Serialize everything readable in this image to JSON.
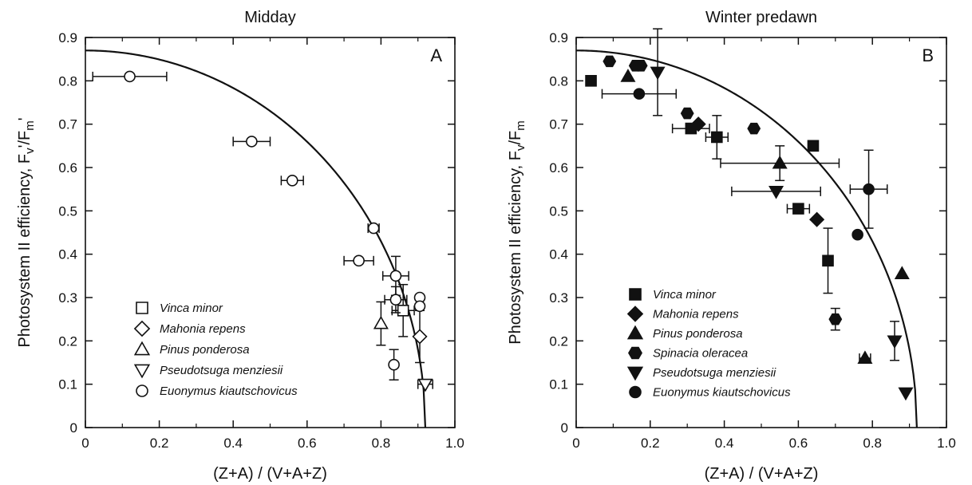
{
  "chart_data": [
    {
      "type": "scatter",
      "title": "Midday",
      "panel_label": "A",
      "xlabel": "(Z+A) / (V+A+Z)",
      "ylabel": "Photosystem II efficiency, F",
      "ylabel_sub1": "v",
      "ylabel_mid": "'/F",
      "ylabel_sub2": "m",
      "ylabel_end": "'",
      "xlim": [
        0,
        1.0
      ],
      "ylim": [
        0,
        0.9
      ],
      "xticks": [
        "0",
        "0.2",
        "0.4",
        "0.6",
        "0.8",
        "1.0"
      ],
      "yticks": [
        "0",
        "0.1",
        "0.2",
        "0.3",
        "0.4",
        "0.5",
        "0.6",
        "0.7",
        "0.8",
        "0.9"
      ],
      "marker_fill": "open",
      "legend_position": "bottom-left",
      "curve": {
        "y0": 0.87,
        "xmax": 0.92,
        "shape": "ellipse"
      },
      "series": [
        {
          "name": "Vinca minor",
          "marker": "square",
          "points": [
            {
              "x": 0.86,
              "y": 0.27,
              "xerr": 0.03,
              "yerr": 0.06
            }
          ]
        },
        {
          "name": "Mahonia repens",
          "marker": "diamond",
          "points": [
            {
              "x": 0.905,
              "y": 0.21,
              "xerr": 0.0,
              "yerr": 0.06
            }
          ]
        },
        {
          "name": "Pinus ponderosa",
          "marker": "triangle-up",
          "points": [
            {
              "x": 0.8,
              "y": 0.24,
              "xerr": 0.0,
              "yerr": 0.05
            }
          ]
        },
        {
          "name": "Pseudotsuga menziesii",
          "marker": "triangle-down",
          "points": [
            {
              "x": 0.92,
              "y": 0.1,
              "xerr": 0.02,
              "yerr": 0.0
            }
          ]
        },
        {
          "name": "Euonymus kiautschovicus",
          "marker": "circle",
          "points": [
            {
              "x": 0.12,
              "y": 0.81,
              "xerr": 0.1,
              "yerr": 0.0
            },
            {
              "x": 0.45,
              "y": 0.66,
              "xerr": 0.05,
              "yerr": 0.0
            },
            {
              "x": 0.56,
              "y": 0.57,
              "xerr": 0.03,
              "yerr": 0.0
            },
            {
              "x": 0.78,
              "y": 0.46,
              "xerr": 0.015,
              "yerr": 0.0
            },
            {
              "x": 0.74,
              "y": 0.385,
              "xerr": 0.04,
              "yerr": 0.0
            },
            {
              "x": 0.84,
              "y": 0.35,
              "xerr": 0.035,
              "yerr": 0.045
            },
            {
              "x": 0.905,
              "y": 0.3,
              "xerr": 0.0,
              "yerr": 0.0
            },
            {
              "x": 0.84,
              "y": 0.295,
              "xerr": 0.03,
              "yerr": 0.03
            },
            {
              "x": 0.905,
              "y": 0.28,
              "xerr": 0.0,
              "yerr": 0.0
            },
            {
              "x": 0.835,
              "y": 0.145,
              "xerr": 0.0,
              "yerr": 0.035
            }
          ]
        }
      ]
    },
    {
      "type": "scatter",
      "title": "Winter predawn",
      "panel_label": "B",
      "xlabel": "(Z+A) / (V+A+Z)",
      "ylabel": "Photosystem II efficiency, F",
      "ylabel_sub1": "v",
      "ylabel_mid": "/F",
      "ylabel_sub2": "m",
      "ylabel_end": "",
      "xlim": [
        0,
        1.0
      ],
      "ylim": [
        0,
        0.9
      ],
      "xticks": [
        "0",
        "0.2",
        "0.4",
        "0.6",
        "0.8",
        "1.0"
      ],
      "yticks": [
        "0",
        "0.1",
        "0.2",
        "0.3",
        "0.4",
        "0.5",
        "0.6",
        "0.7",
        "0.8",
        "0.9"
      ],
      "marker_fill": "filled",
      "legend_position": "bottom-left",
      "curve": {
        "y0": 0.87,
        "xmax": 0.92,
        "shape": "ellipse"
      },
      "series": [
        {
          "name": "Vinca minor",
          "marker": "square",
          "points": [
            {
              "x": 0.04,
              "y": 0.8,
              "xerr": 0.0,
              "yerr": 0.0
            },
            {
              "x": 0.31,
              "y": 0.69,
              "xerr": 0.05,
              "yerr": 0.0
            },
            {
              "x": 0.38,
              "y": 0.67,
              "xerr": 0.03,
              "yerr": 0.05
            },
            {
              "x": 0.64,
              "y": 0.65,
              "xerr": 0.0,
              "yerr": 0.0
            },
            {
              "x": 0.6,
              "y": 0.505,
              "xerr": 0.03,
              "yerr": 0.0
            },
            {
              "x": 0.68,
              "y": 0.385,
              "xerr": 0.0,
              "yerr": 0.075
            }
          ]
        },
        {
          "name": "Mahonia repens",
          "marker": "diamond",
          "points": [
            {
              "x": 0.33,
              "y": 0.7,
              "xerr": 0.0,
              "yerr": 0.0
            },
            {
              "x": 0.65,
              "y": 0.48,
              "xerr": 0.0,
              "yerr": 0.0
            }
          ]
        },
        {
          "name": "Pinus ponderosa",
          "marker": "triangle-up",
          "points": [
            {
              "x": 0.14,
              "y": 0.81,
              "xerr": 0.0,
              "yerr": 0.0
            },
            {
              "x": 0.55,
              "y": 0.61,
              "xerr": 0.16,
              "yerr": 0.04
            },
            {
              "x": 0.88,
              "y": 0.355,
              "xerr": 0.0,
              "yerr": 0.0
            },
            {
              "x": 0.78,
              "y": 0.16,
              "xerr": 0.015,
              "yerr": 0.0
            }
          ]
        },
        {
          "name": "Spinacia oleracea",
          "marker": "hexagon",
          "points": [
            {
              "x": 0.09,
              "y": 0.845,
              "xerr": 0.0,
              "yerr": 0.0
            },
            {
              "x": 0.16,
              "y": 0.835,
              "xerr": 0.0,
              "yerr": 0.0
            },
            {
              "x": 0.175,
              "y": 0.835,
              "xerr": 0.0,
              "yerr": 0.0
            },
            {
              "x": 0.3,
              "y": 0.725,
              "xerr": 0.0,
              "yerr": 0.0
            },
            {
              "x": 0.48,
              "y": 0.69,
              "xerr": 0.0,
              "yerr": 0.0
            },
            {
              "x": 0.7,
              "y": 0.25,
              "xerr": 0.0,
              "yerr": 0.025
            }
          ]
        },
        {
          "name": "Pseudotsuga menziesii",
          "marker": "triangle-down",
          "points": [
            {
              "x": 0.22,
              "y": 0.82,
              "xerr": 0.0,
              "yerr": 0.1
            },
            {
              "x": 0.54,
              "y": 0.545,
              "xerr": 0.12,
              "yerr": 0.0
            },
            {
              "x": 0.86,
              "y": 0.2,
              "xerr": 0.0,
              "yerr": 0.045
            },
            {
              "x": 0.89,
              "y": 0.08,
              "xerr": 0.0,
              "yerr": 0.0
            }
          ]
        },
        {
          "name": "Euonymus kiautschovicus",
          "marker": "circle",
          "points": [
            {
              "x": 0.17,
              "y": 0.77,
              "xerr": 0.1,
              "yerr": 0.0
            },
            {
              "x": 0.79,
              "y": 0.55,
              "xerr": 0.05,
              "yerr": 0.09
            },
            {
              "x": 0.76,
              "y": 0.445,
              "xerr": 0.0,
              "yerr": 0.0
            }
          ]
        }
      ]
    }
  ]
}
